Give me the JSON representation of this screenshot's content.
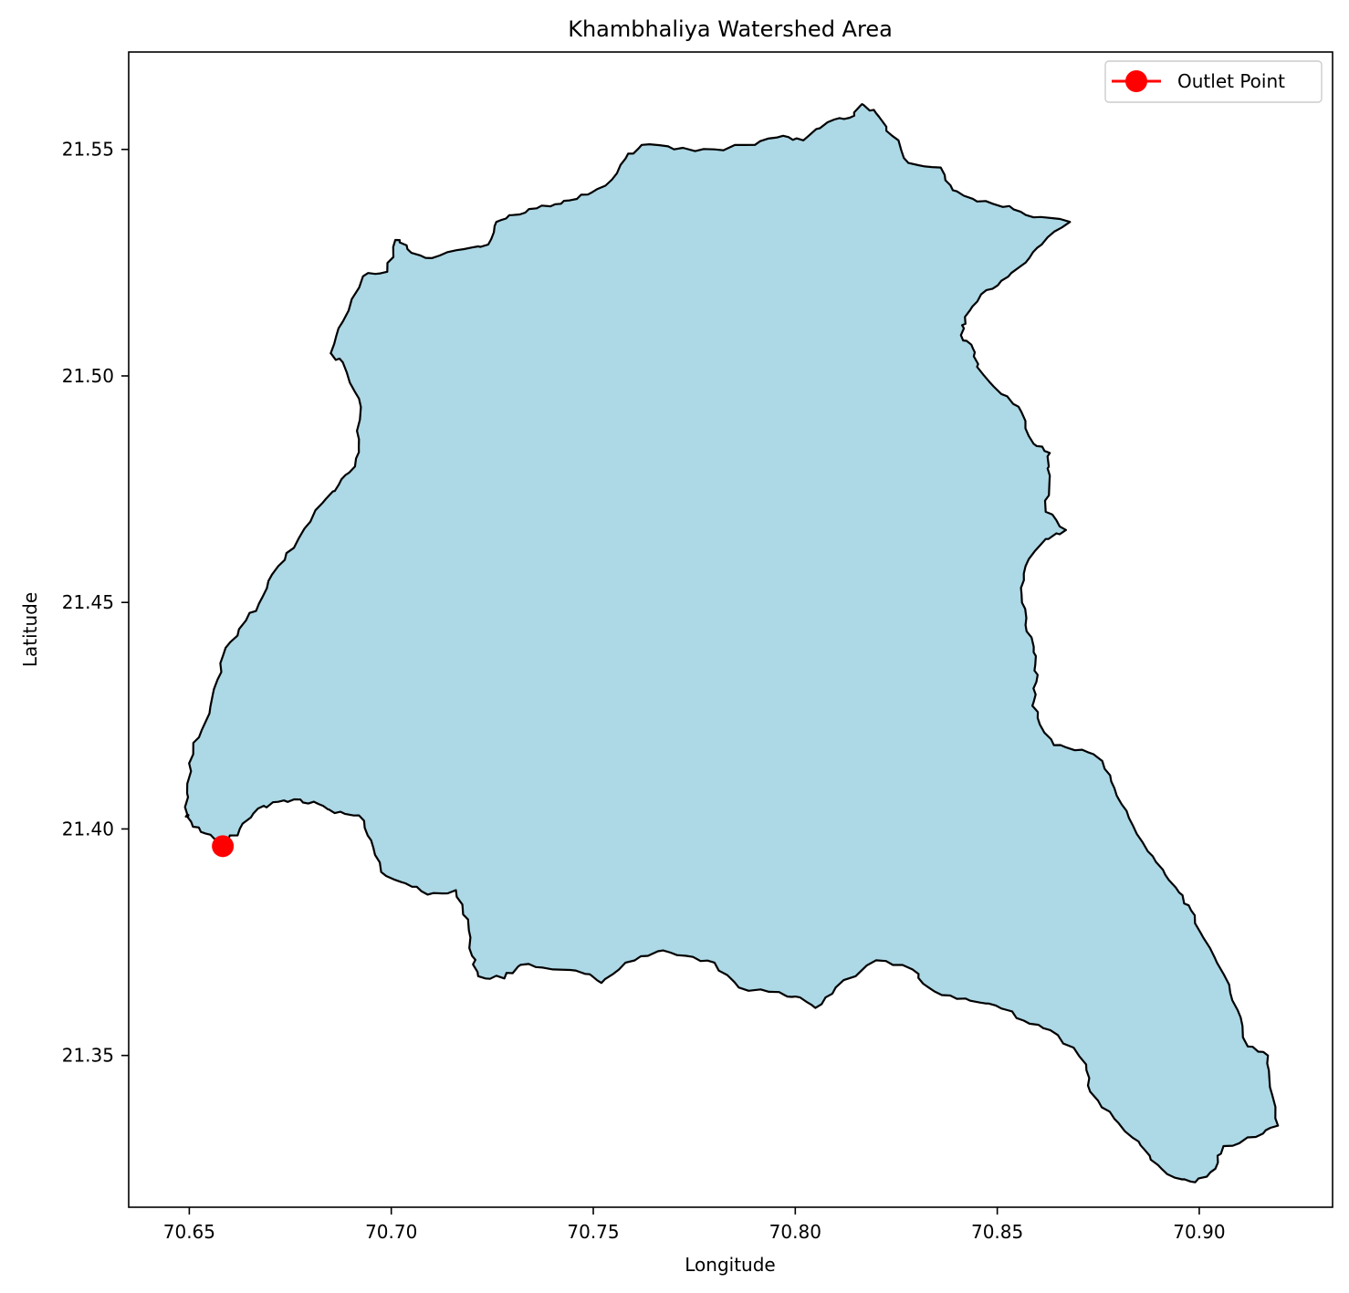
{
  "chart_data": {
    "type": "map",
    "title": "Khambhaliya Watershed Area",
    "xlabel": "Longitude",
    "ylabel": "Latitude",
    "xlim": [
      70.635,
      70.933
    ],
    "ylim": [
      21.3165,
      21.5715
    ],
    "xticks": [
      70.65,
      70.7,
      70.75,
      70.8,
      70.85,
      70.9
    ],
    "yticks": [
      21.35,
      21.4,
      21.45,
      21.5,
      21.55
    ],
    "xtick_labels": [
      "70.65",
      "70.70",
      "70.75",
      "70.80",
      "70.85",
      "70.90"
    ],
    "ytick_labels": [
      "21.35",
      "21.40",
      "21.45",
      "21.50",
      "21.55"
    ],
    "legend": {
      "position": "top-right",
      "entries": [
        {
          "label": "Outlet Point",
          "marker": "circle",
          "color": "#ff0000"
        }
      ]
    },
    "watershed": {
      "fill": "#add8e6",
      "edge": "#000000",
      "boundary": [
        [
          70.6495,
          21.4032
        ],
        [
          70.6505,
          21.4015
        ],
        [
          70.654,
          21.399
        ],
        [
          70.6583,
          21.3962
        ],
        [
          70.6625,
          21.4
        ],
        [
          70.667,
          21.4045
        ],
        [
          70.672,
          21.406
        ],
        [
          70.6775,
          21.4065
        ],
        [
          70.682,
          21.4055
        ],
        [
          70.686,
          21.4035
        ],
        [
          70.692,
          21.403
        ],
        [
          70.695,
          21.3975
        ],
        [
          70.6975,
          21.3905
        ],
        [
          70.7035,
          21.388
        ],
        [
          70.709,
          21.3855
        ],
        [
          70.716,
          21.3865
        ],
        [
          70.719,
          21.38
        ],
        [
          70.72,
          21.372
        ],
        [
          70.7215,
          21.3675
        ],
        [
          70.728,
          21.367
        ],
        [
          70.732,
          21.37
        ],
        [
          70.74,
          21.369
        ],
        [
          70.748,
          21.368
        ],
        [
          70.752,
          21.366
        ],
        [
          70.758,
          21.3705
        ],
        [
          70.766,
          21.373
        ],
        [
          70.773,
          21.372
        ],
        [
          70.78,
          21.3705
        ],
        [
          70.786,
          21.365
        ],
        [
          70.796,
          21.364
        ],
        [
          70.8,
          21.363
        ],
        [
          70.805,
          21.3605
        ],
        [
          70.81,
          21.365
        ],
        [
          70.82,
          21.371
        ],
        [
          70.829,
          21.369
        ],
        [
          70.833,
          21.365
        ],
        [
          70.84,
          21.3625
        ],
        [
          70.847,
          21.3615
        ],
        [
          70.8525,
          21.36
        ],
        [
          70.858,
          21.357
        ],
        [
          70.865,
          21.3545
        ],
        [
          70.872,
          21.348
        ],
        [
          70.873,
          21.342
        ],
        [
          70.879,
          21.336
        ],
        [
          70.885,
          21.331
        ],
        [
          70.888,
          21.327
        ],
        [
          70.894,
          21.323
        ],
        [
          70.899,
          21.322
        ],
        [
          70.904,
          21.325
        ],
        [
          70.906,
          21.33
        ],
        [
          70.914,
          21.332
        ],
        [
          70.9195,
          21.3345
        ],
        [
          70.9175,
          21.343
        ],
        [
          70.917,
          21.35
        ],
        [
          70.912,
          21.352
        ],
        [
          70.9095,
          21.36
        ],
        [
          70.906,
          21.368
        ],
        [
          70.901,
          21.376
        ],
        [
          70.898,
          21.382
        ],
        [
          70.895,
          21.386
        ],
        [
          70.891,
          21.391
        ],
        [
          70.886,
          21.397
        ],
        [
          70.882,
          21.404
        ],
        [
          70.879,
          21.409
        ],
        [
          70.876,
          21.415
        ],
        [
          70.871,
          21.4175
        ],
        [
          70.864,
          21.4185
        ],
        [
          70.86,
          21.4245
        ],
        [
          70.859,
          21.428
        ],
        [
          70.86,
          21.434
        ],
        [
          70.859,
          21.439
        ],
        [
          70.857,
          21.445
        ],
        [
          70.856,
          21.452
        ],
        [
          70.857,
          21.458
        ],
        [
          70.862,
          21.464
        ],
        [
          70.867,
          21.466
        ],
        [
          70.862,
          21.47
        ],
        [
          70.863,
          21.478
        ],
        [
          70.863,
          21.483
        ],
        [
          70.859,
          21.485
        ],
        [
          70.856,
          21.492
        ],
        [
          70.851,
          21.496
        ],
        [
          70.845,
          21.502
        ],
        [
          70.844,
          21.506
        ],
        [
          70.841,
          21.509
        ],
        [
          70.842,
          21.513
        ],
        [
          70.846,
          21.518
        ],
        [
          70.851,
          21.521
        ],
        [
          70.857,
          21.525
        ],
        [
          70.861,
          21.529
        ],
        [
          70.868,
          21.534
        ],
        [
          70.859,
          21.535
        ],
        [
          70.853,
          21.5375
        ],
        [
          70.845,
          21.5385
        ],
        [
          70.839,
          21.541
        ],
        [
          70.836,
          21.546
        ],
        [
          70.828,
          21.547
        ],
        [
          70.824,
          21.553
        ],
        [
          70.82,
          21.558
        ],
        [
          70.8165,
          21.56
        ],
        [
          70.8135,
          21.557
        ],
        [
          70.808,
          21.556
        ],
        [
          70.802,
          21.552
        ],
        [
          70.797,
          21.553
        ],
        [
          70.79,
          21.551
        ],
        [
          70.78,
          21.55
        ],
        [
          70.77,
          21.55
        ],
        [
          70.762,
          21.551
        ],
        [
          70.758,
          21.548
        ],
        [
          70.753,
          21.542
        ],
        [
          70.747,
          21.54
        ],
        [
          70.742,
          21.538
        ],
        [
          70.736,
          21.537
        ],
        [
          70.73,
          21.5355
        ],
        [
          70.726,
          21.534
        ],
        [
          70.724,
          21.529
        ],
        [
          70.718,
          21.528
        ],
        [
          70.71,
          21.526
        ],
        [
          70.704,
          21.528
        ],
        [
          70.701,
          21.53
        ],
        [
          70.699,
          21.523
        ],
        [
          70.693,
          21.522
        ],
        [
          70.688,
          21.512
        ],
        [
          70.685,
          21.505
        ],
        [
          70.688,
          21.503
        ],
        [
          70.692,
          21.495
        ],
        [
          70.692,
          21.486
        ],
        [
          70.691,
          21.48
        ],
        [
          70.687,
          21.476
        ],
        [
          70.683,
          21.472
        ],
        [
          70.677,
          21.464
        ],
        [
          70.672,
          21.458
        ],
        [
          70.668,
          21.451
        ],
        [
          70.664,
          21.446
        ],
        [
          70.659,
          21.44
        ],
        [
          70.657,
          21.433
        ],
        [
          70.655,
          21.4255
        ],
        [
          70.651,
          21.419
        ],
        [
          70.6495,
          21.41
        ],
        [
          70.6495,
          21.4032
        ]
      ]
    },
    "outlet_point": {
      "name": "Outlet Point",
      "x": 70.6583,
      "y": 21.3962,
      "color": "#ff0000"
    }
  }
}
